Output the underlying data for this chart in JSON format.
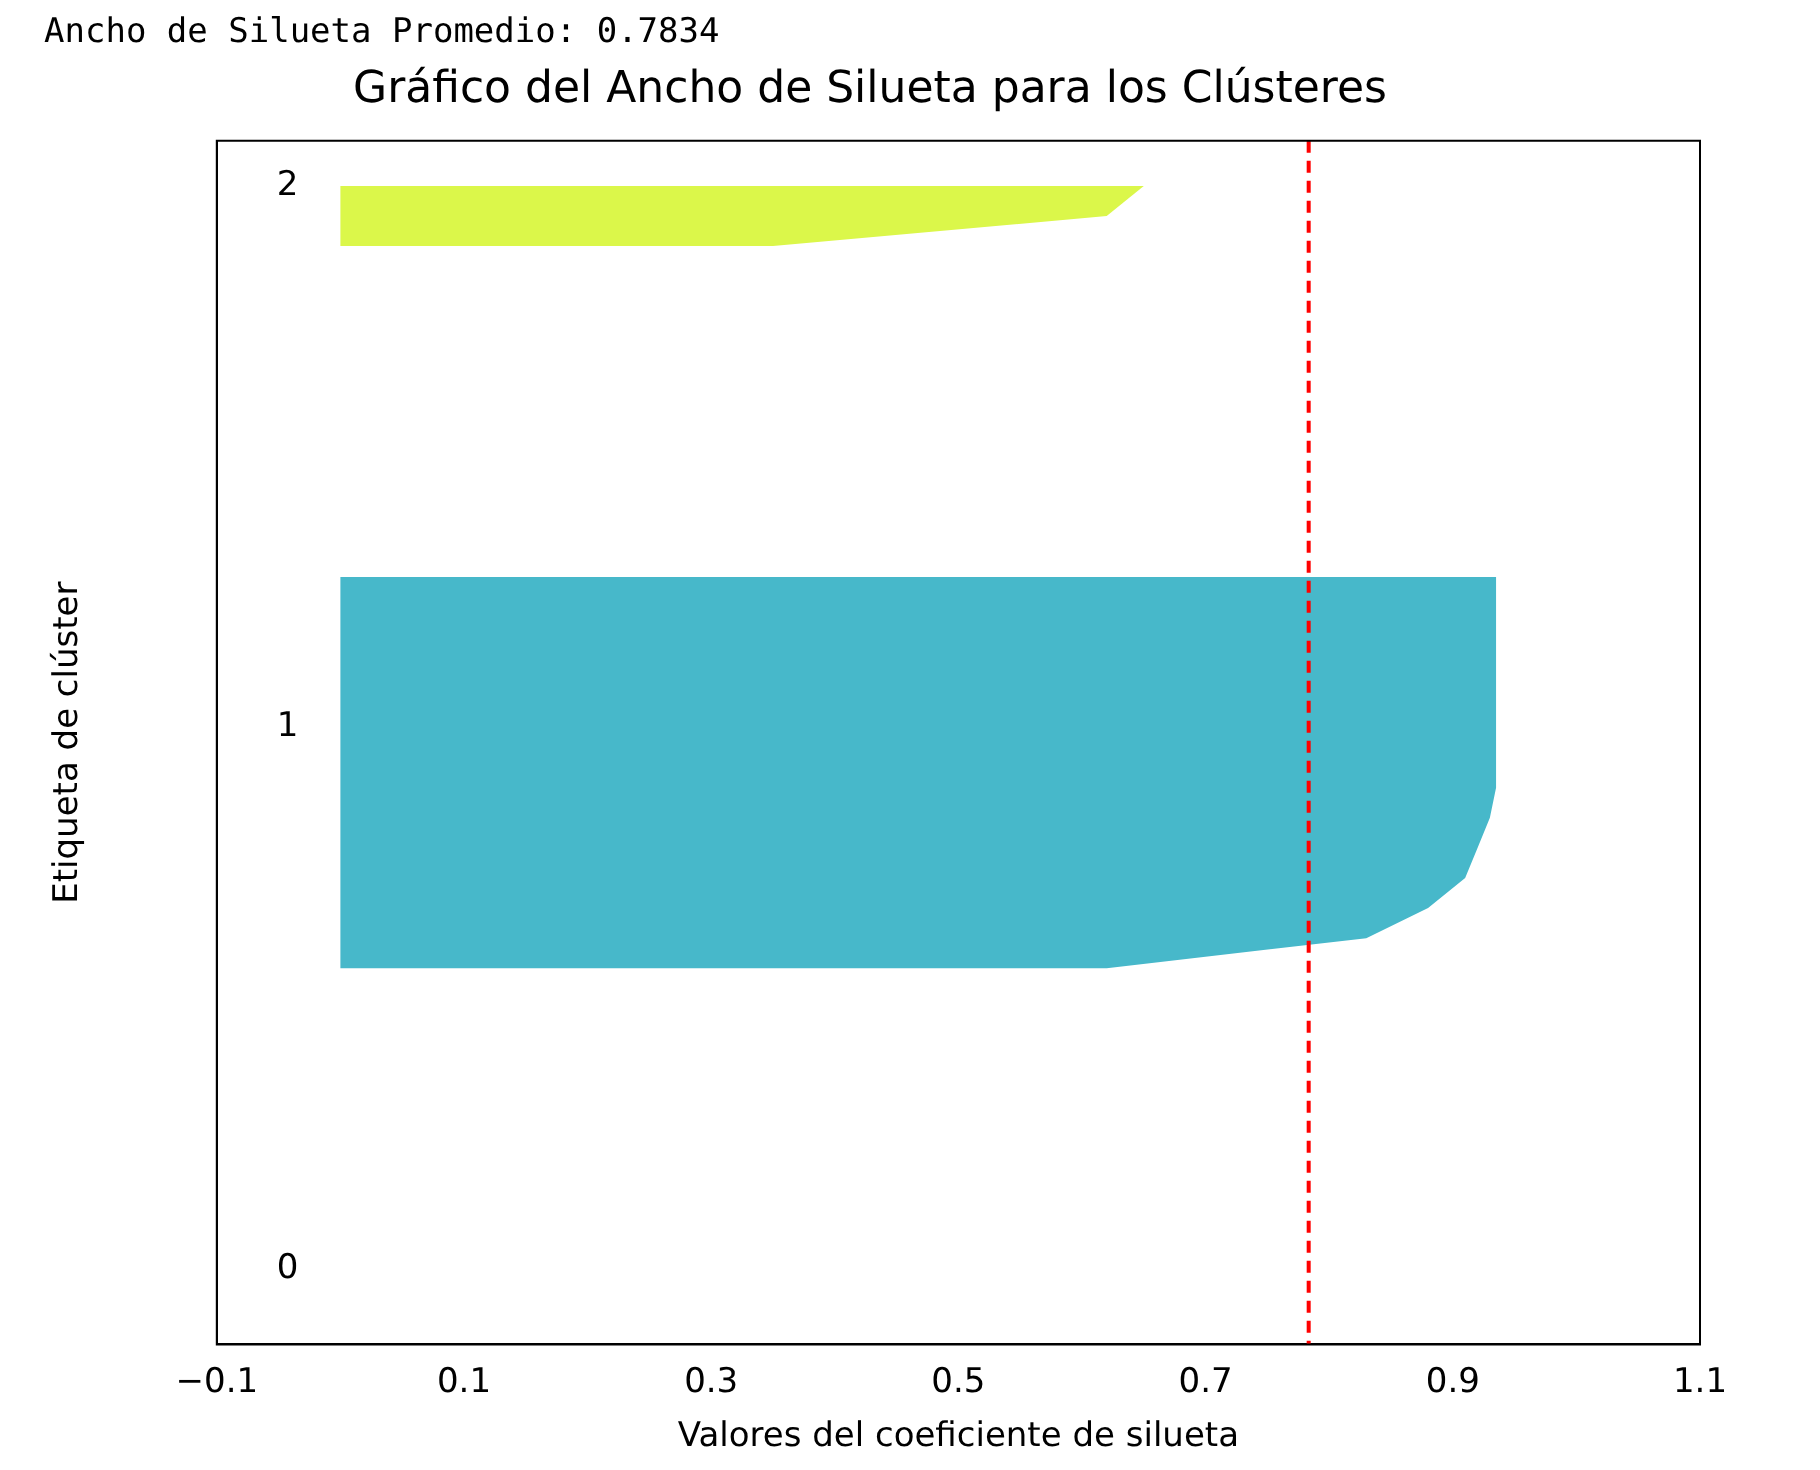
{
  "chart_data": {
    "type": "area",
    "orientation": "horizontal",
    "title": "Gráfico del Ancho de Silueta para los Clústeres",
    "xlabel": "Valores del coeficiente de silueta",
    "ylabel": "Etiqueta de clúster",
    "categories": [
      null,
      "2",
      null,
      null,
      null,
      null,
      null,
      null,
      null,
      null,
      null,
      null,
      null,
      null,
      null,
      null,
      null,
      null,
      null,
      "1",
      null,
      null,
      null,
      null,
      null,
      null,
      null,
      null,
      null,
      null,
      null,
      null,
      null,
      null,
      null,
      null,
      null,
      "0",
      null,
      null
    ],
    "xlim": [
      -0.1,
      1.1
    ],
    "xticks": [
      {
        "value": -0.1,
        "label": "−0.1"
      },
      0.1,
      0.3,
      0.5,
      0.7,
      0.9,
      1.1
    ],
    "grid": false,
    "series": [
      {
        "color": "#47b8ca",
        "values": [
          null,
          null,
          null,
          null,
          null,
          null,
          null,
          null,
          null,
          null,
          null,
          null,
          null,
          null,
          0.935,
          0.935,
          0.935,
          0.935,
          0.935,
          0.935,
          0.935,
          0.935,
          0.93,
          0.92,
          0.91,
          0.88,
          0.83,
          0.62,
          null,
          null,
          null,
          null,
          null,
          null,
          null,
          null,
          null,
          null,
          null,
          null
        ]
      },
      {
        "color": "#dbf74a",
        "values": [
          null,
          0.65,
          0.62,
          0.35,
          null,
          null,
          null,
          null,
          null,
          null,
          null,
          null,
          null,
          null,
          null,
          null,
          null,
          null,
          null,
          null,
          null,
          null,
          null,
          null,
          null,
          null,
          null,
          null,
          null,
          null,
          null,
          null,
          null,
          null,
          null,
          null,
          null,
          null,
          null,
          null
        ]
      }
    ],
    "ref_lines": [
      {
        "axis": "x",
        "value": 0.7834,
        "color": "#ff0000",
        "line_style": "dashed"
      }
    ],
    "annotations": [
      "Ancho de Silueta Promedio: 0.7834"
    ]
  }
}
